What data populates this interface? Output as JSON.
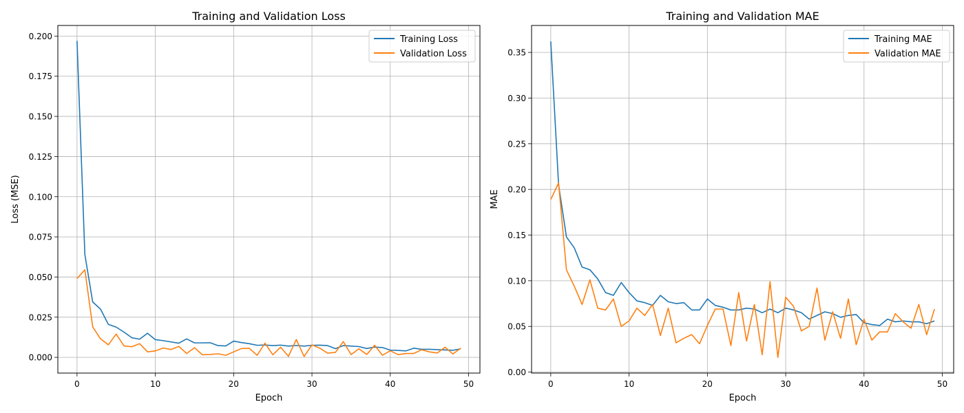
{
  "chart_data": [
    {
      "type": "line",
      "title": "Training and Validation Loss",
      "xlabel": "Epoch",
      "ylabel": "Loss (MSE)",
      "xlim": [
        -2.45,
        51.45
      ],
      "ylim": [
        -0.0098,
        0.2066
      ],
      "xticks": [
        0,
        10,
        20,
        30,
        40,
        50
      ],
      "xtick_labels": [
        "0",
        "10",
        "20",
        "30",
        "40",
        "50"
      ],
      "yticks": [
        0,
        0.025,
        0.05,
        0.075,
        0.1,
        0.125,
        0.15,
        0.175,
        0.2
      ],
      "ytick_labels": [
        "0.000",
        "0.025",
        "0.050",
        "0.075",
        "0.100",
        "0.125",
        "0.150",
        "0.175",
        "0.200"
      ],
      "grid": true,
      "legend_position": "upper-right",
      "series": [
        {
          "name": "Training Loss",
          "color": "#1f77b4",
          "values": [
            0.197,
            0.064,
            0.0345,
            0.03,
            0.0205,
            0.0188,
            0.0157,
            0.0122,
            0.0113,
            0.015,
            0.011,
            0.0104,
            0.0096,
            0.0088,
            0.0115,
            0.009,
            0.009,
            0.0091,
            0.0073,
            0.0071,
            0.0101,
            0.0092,
            0.0085,
            0.0075,
            0.0077,
            0.0073,
            0.0076,
            0.007,
            0.0074,
            0.007,
            0.0075,
            0.0076,
            0.0073,
            0.0054,
            0.0073,
            0.007,
            0.0067,
            0.0055,
            0.0064,
            0.0061,
            0.0045,
            0.0043,
            0.004,
            0.0057,
            0.005,
            0.005,
            0.0048,
            0.0046,
            0.0044,
            0.0053
          ]
        },
        {
          "name": "Validation Loss",
          "color": "#ff7f0e",
          "values": [
            0.049,
            0.0545,
            0.019,
            0.0115,
            0.0078,
            0.0145,
            0.0071,
            0.0066,
            0.0085,
            0.0034,
            0.004,
            0.0058,
            0.0049,
            0.0068,
            0.0024,
            0.006,
            0.0016,
            0.0018,
            0.0022,
            0.0013,
            0.0034,
            0.0055,
            0.0056,
            0.0013,
            0.0088,
            0.0016,
            0.0063,
            0.0006,
            0.0111,
            0.0005,
            0.0078,
            0.0057,
            0.0026,
            0.0031,
            0.0098,
            0.0017,
            0.0053,
            0.0018,
            0.0075,
            0.0013,
            0.0041,
            0.0017,
            0.0024,
            0.0024,
            0.0047,
            0.0034,
            0.0027,
            0.0063,
            0.0021,
            0.0057
          ]
        }
      ]
    },
    {
      "type": "line",
      "title": "Training and Validation MAE",
      "xlabel": "Epoch",
      "ylabel": "MAE",
      "xlim": [
        -2.45,
        51.45
      ],
      "ylim": [
        -0.0011,
        0.3795
      ],
      "xticks": [
        0,
        10,
        20,
        30,
        40,
        50
      ],
      "xtick_labels": [
        "0",
        "10",
        "20",
        "30",
        "40",
        "50"
      ],
      "yticks": [
        0,
        0.05,
        0.1,
        0.15,
        0.2,
        0.25,
        0.3,
        0.35
      ],
      "ytick_labels": [
        "0.00",
        "0.05",
        "0.10",
        "0.15",
        "0.20",
        "0.25",
        "0.30",
        "0.35"
      ],
      "grid": true,
      "legend_position": "upper-right",
      "series": [
        {
          "name": "Training MAE",
          "color": "#1f77b4",
          "values": [
            0.362,
            0.205,
            0.148,
            0.136,
            0.115,
            0.112,
            0.102,
            0.087,
            0.084,
            0.098,
            0.087,
            0.078,
            0.076,
            0.073,
            0.084,
            0.077,
            0.075,
            0.076,
            0.068,
            0.068,
            0.08,
            0.073,
            0.071,
            0.068,
            0.068,
            0.07,
            0.069,
            0.065,
            0.069,
            0.065,
            0.07,
            0.068,
            0.065,
            0.058,
            0.062,
            0.066,
            0.064,
            0.06,
            0.062,
            0.063,
            0.054,
            0.052,
            0.051,
            0.058,
            0.055,
            0.056,
            0.055,
            0.055,
            0.053,
            0.056
          ]
        },
        {
          "name": "Validation MAE",
          "color": "#ff7f0e",
          "values": [
            0.189,
            0.207,
            0.112,
            0.094,
            0.074,
            0.101,
            0.07,
            0.068,
            0.08,
            0.05,
            0.056,
            0.07,
            0.062,
            0.074,
            0.04,
            0.07,
            0.032,
            0.037,
            0.041,
            0.031,
            0.051,
            0.069,
            0.069,
            0.029,
            0.087,
            0.034,
            0.074,
            0.019,
            0.099,
            0.016,
            0.082,
            0.072,
            0.045,
            0.05,
            0.092,
            0.035,
            0.066,
            0.037,
            0.08,
            0.03,
            0.058,
            0.035,
            0.044,
            0.044,
            0.064,
            0.055,
            0.048,
            0.074,
            0.041,
            0.069
          ]
        }
      ]
    }
  ]
}
